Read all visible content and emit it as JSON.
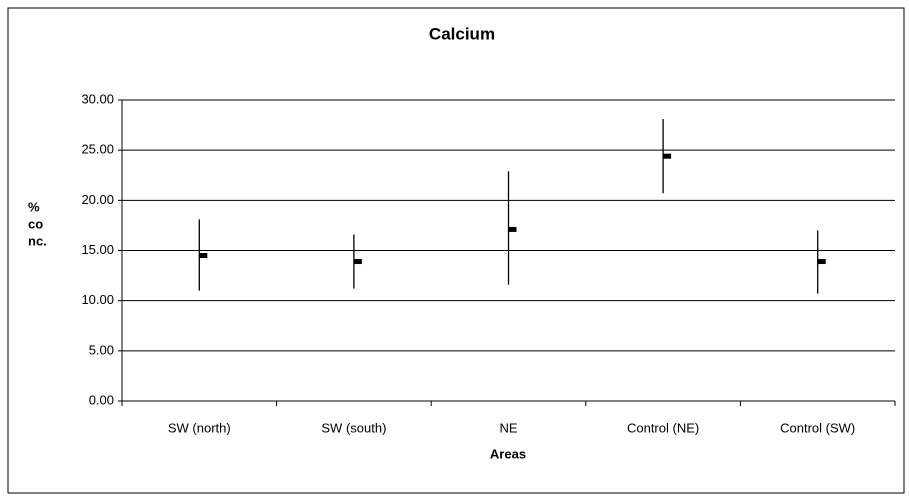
{
  "chart_data": {
    "type": "hlc",
    "title": "Calcium",
    "xlabel": "Areas",
    "ylabel": [
      "%",
      "co",
      "nc."
    ],
    "categories": [
      "SW (north)",
      "SW (south)",
      "NE",
      "Control (NE)",
      "Control (SW)"
    ],
    "high": [
      18.1,
      16.6,
      22.9,
      28.1,
      17.0
    ],
    "low": [
      11.0,
      11.2,
      11.6,
      20.7,
      10.7
    ],
    "mean": [
      14.5,
      13.9,
      17.1,
      24.4,
      13.9
    ],
    "color": "#000000",
    "ylim": [
      0,
      30
    ],
    "yticks": [
      {
        "value": 0,
        "label": "0.00"
      },
      {
        "value": 5,
        "label": "5.00"
      },
      {
        "value": 10,
        "label": "10.00"
      },
      {
        "value": 15,
        "label": "15.00"
      },
      {
        "value": 20,
        "label": "20.00"
      },
      {
        "value": 25,
        "label": "25.00"
      },
      {
        "value": 30,
        "label": "30.00"
      }
    ],
    "grid": true
  }
}
